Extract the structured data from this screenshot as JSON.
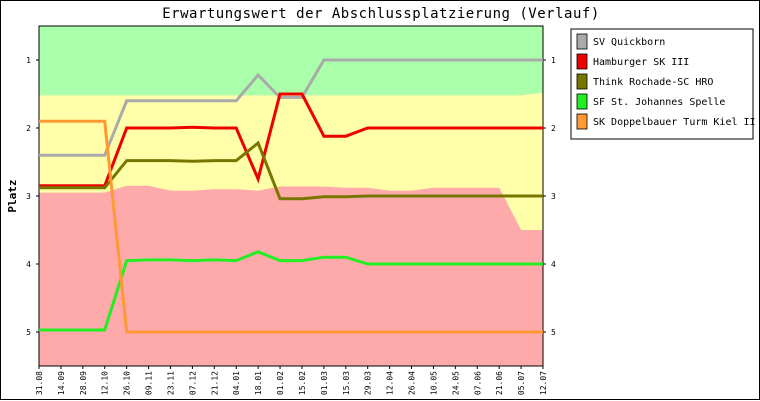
{
  "chart_data": {
    "type": "line",
    "title": "Erwartungswert der Abschlussplatzierung (Verlauf)",
    "ylabel": "Platz",
    "xlabel": "",
    "ylim": [
      5.5,
      0.5
    ],
    "y_ticks": [
      1,
      2,
      3,
      4,
      5
    ],
    "y_inverted": true,
    "grid": false,
    "legend_position": "right",
    "categories": [
      "31.08",
      "14.09",
      "28.09",
      "12.10",
      "26.10",
      "09.11",
      "23.11",
      "07.12",
      "21.12",
      "04.01",
      "18.01",
      "01.02",
      "15.02",
      "01.03",
      "15.03",
      "29.03",
      "12.04",
      "26.04",
      "10.05",
      "24.05",
      "07.06",
      "21.06",
      "05.07",
      "12.07"
    ],
    "bands": [
      {
        "name": "top",
        "color": "#aaffaa",
        "upper": [
          1.52,
          1.52,
          1.52,
          1.52,
          1.52,
          1.52,
          1.52,
          1.52,
          1.52,
          1.52,
          1.52,
          1.52,
          1.52,
          1.52,
          1.52,
          1.52,
          1.52,
          1.52,
          1.52,
          1.52,
          1.52,
          1.52,
          1.52,
          1.48
        ]
      },
      {
        "name": "middle",
        "color": "#ffffaa",
        "upper": [
          2.95,
          2.95,
          2.95,
          2.95,
          2.85,
          2.85,
          2.92,
          2.92,
          2.9,
          2.9,
          2.92,
          2.86,
          2.86,
          2.86,
          2.88,
          2.88,
          2.92,
          2.92,
          2.88,
          2.88,
          2.88,
          2.88,
          3.5,
          3.5
        ]
      },
      {
        "name": "bottom",
        "color": "#ffaaaa"
      }
    ],
    "series": [
      {
        "name": "SV Quickborn",
        "color": "#aaaaaa",
        "values": [
          2.4,
          2.4,
          2.4,
          2.4,
          1.6,
          1.6,
          1.6,
          1.6,
          1.6,
          1.6,
          1.22,
          1.55,
          1.55,
          1.0,
          1.0,
          1.0,
          1.0,
          1.0,
          1.0,
          1.0,
          1.0,
          1.0,
          1.0,
          1.0
        ]
      },
      {
        "name": "Hamburger SK III",
        "color": "#ee0000",
        "values": [
          2.85,
          2.85,
          2.85,
          2.85,
          2.0,
          2.0,
          2.0,
          1.99,
          2.0,
          2.0,
          2.75,
          1.5,
          1.5,
          2.12,
          2.12,
          2.0,
          2.0,
          2.0,
          2.0,
          2.0,
          2.0,
          2.0,
          2.0,
          2.0
        ]
      },
      {
        "name": "Think Rochade-SC HRO",
        "color": "#777700",
        "values": [
          2.88,
          2.88,
          2.88,
          2.88,
          2.48,
          2.48,
          2.48,
          2.49,
          2.48,
          2.48,
          2.22,
          3.04,
          3.04,
          3.01,
          3.01,
          3.0,
          3.0,
          3.0,
          3.0,
          3.0,
          3.0,
          3.0,
          3.0,
          3.0
        ]
      },
      {
        "name": "SF St. Johannes Spelle",
        "color": "#22ee22",
        "values": [
          4.97,
          4.97,
          4.97,
          4.97,
          3.95,
          3.94,
          3.94,
          3.95,
          3.94,
          3.95,
          3.82,
          3.95,
          3.95,
          3.9,
          3.9,
          4.0,
          4.0,
          4.0,
          4.0,
          4.0,
          4.0,
          4.0,
          4.0,
          4.0
        ]
      },
      {
        "name": "SK Doppelbauer Turm Kiel II",
        "color": "#ff9933",
        "values": [
          1.9,
          1.9,
          1.9,
          1.9,
          5.0,
          5.0,
          5.0,
          5.0,
          5.0,
          5.0,
          5.0,
          5.0,
          5.0,
          5.0,
          5.0,
          5.0,
          5.0,
          5.0,
          5.0,
          5.0,
          5.0,
          5.0,
          5.0,
          5.0
        ]
      }
    ]
  }
}
